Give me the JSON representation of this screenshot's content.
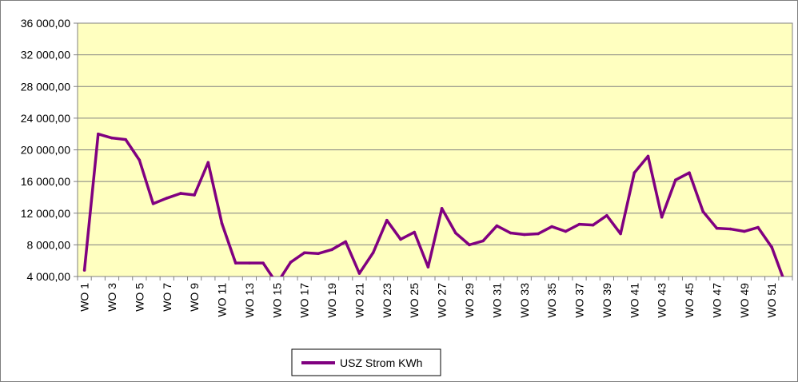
{
  "chart_data": {
    "type": "line",
    "title": "",
    "xlabel": "",
    "ylabel": "",
    "ylim": [
      4000,
      36000
    ],
    "yticks": [
      4000,
      8000,
      12000,
      16000,
      20000,
      24000,
      28000,
      32000,
      36000
    ],
    "ytick_labels": [
      "4 000,00",
      "8 000,00",
      "12 000,00",
      "16 000,00",
      "20 000,00",
      "24 000,00",
      "28 000,00",
      "32 000,00",
      "36 000,00"
    ],
    "grid": "horizontal",
    "legend_position": "bottom-center",
    "plot_background": "#ffffc0",
    "line_color": "#800080",
    "categories": [
      "WO 1",
      "WO 2",
      "WO 3",
      "WO 4",
      "WO 5",
      "WO 6",
      "WO 7",
      "WO 8",
      "WO 9",
      "WO 10",
      "WO 11",
      "WO 12",
      "WO 13",
      "WO 14",
      "WO 15",
      "WO 16",
      "WO 17",
      "WO 18",
      "WO 19",
      "WO 20",
      "WO 21",
      "WO 22",
      "WO 23",
      "WO 24",
      "WO 25",
      "WO 26",
      "WO 27",
      "WO 28",
      "WO 29",
      "WO 30",
      "WO 31",
      "WO 32",
      "WO 33",
      "WO 34",
      "WO 35",
      "WO 36",
      "WO 37",
      "WO 38",
      "WO 39",
      "WO 40",
      "WO 41",
      "WO 42",
      "WO 43",
      "WO 44",
      "WO 45",
      "WO 46",
      "WO 47",
      "WO 48",
      "WO 49",
      "WO 50",
      "WO 51",
      "WO 52"
    ],
    "category_labels_shown": [
      "WO 1",
      "",
      "WO 3",
      "",
      "WO 5",
      "",
      "WO 7",
      "",
      "WO 9",
      "",
      "WO 11",
      "",
      "WO 13",
      "",
      "WO 15",
      "",
      "WO 17",
      "",
      "WO 19",
      "",
      "WO 21",
      "",
      "WO 23",
      "",
      "WO 25",
      "",
      "WO 27",
      "",
      "WO 29",
      "",
      "WO 31",
      "",
      "WO 33",
      "",
      "WO 35",
      "",
      "WO 37",
      "",
      "WO 39",
      "",
      "WO 41",
      "",
      "WO 43",
      "",
      "WO 45",
      "",
      "WO 47",
      "",
      "WO 49",
      "",
      "WO 51",
      ""
    ],
    "series": [
      {
        "name": "USZ Strom KWh",
        "values": [
          4800,
          22000,
          21500,
          21300,
          18700,
          13200,
          13900,
          14500,
          14300,
          18400,
          10700,
          5700,
          5700,
          5700,
          3100,
          5800,
          7000,
          6900,
          7400,
          8400,
          4400,
          7000,
          11100,
          8700,
          9600,
          5200,
          12600,
          9500,
          8000,
          8500,
          10400,
          9500,
          9300,
          9400,
          10300,
          9700,
          10600,
          10500,
          11700,
          9400,
          17100,
          19200,
          11500,
          16200,
          17100,
          12200,
          10100,
          10000,
          9700,
          10200,
          7700,
          3000
        ]
      }
    ]
  }
}
